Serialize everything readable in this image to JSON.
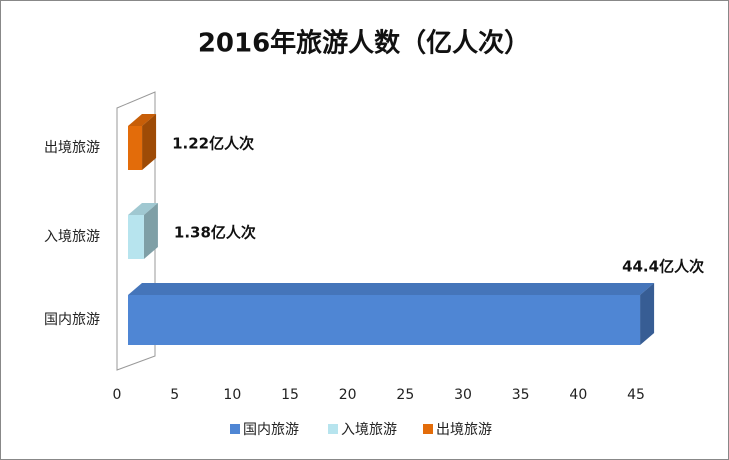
{
  "chart_data": {
    "type": "bar3d",
    "title": "2016年旅游人数（亿人次）",
    "categories": [
      "国内旅游",
      "入境旅游",
      "出境旅游"
    ],
    "values": [
      44.4,
      1.38,
      1.22
    ],
    "value_labels": [
      "44.4亿人次",
      "1.38亿人次",
      "1.22亿人次"
    ],
    "colors": [
      "#4f86d4",
      "#b7e4ee",
      "#e36c0a"
    ],
    "xlim": [
      0,
      45
    ],
    "xticks": [
      0,
      5,
      10,
      15,
      20,
      25,
      30,
      35,
      40,
      45
    ],
    "legend": "bottom"
  }
}
